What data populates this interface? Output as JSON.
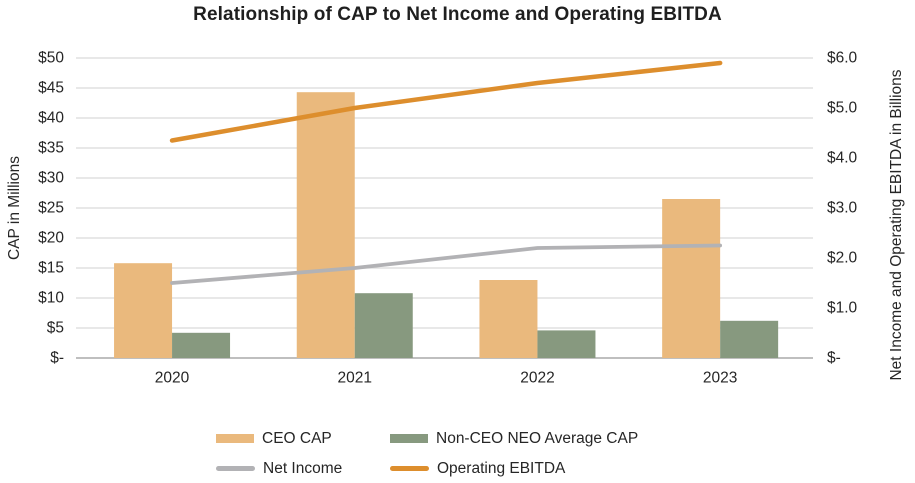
{
  "chart_data": {
    "type": "bar",
    "subtype": "combo-bar-line-dual-axis",
    "title": "Relationship of CAP to Net Income and Operating EBITDA",
    "categories": [
      "2020",
      "2021",
      "2022",
      "2023"
    ],
    "bar_series": [
      {
        "name": "CEO CAP",
        "axis": "left",
        "color": "#eab97d",
        "values": [
          15.8,
          44.3,
          13.0,
          26.5
        ]
      },
      {
        "name": "Non-CEO NEO Average CAP",
        "axis": "left",
        "color": "#87997f",
        "values": [
          4.2,
          10.8,
          4.6,
          6.2
        ]
      }
    ],
    "line_series": [
      {
        "name": "Net Income",
        "axis": "right",
        "color": "#b2b2b5",
        "stroke_width": 3.75,
        "values": [
          1.5,
          1.8,
          2.2,
          2.25
        ]
      },
      {
        "name": "Operating EBITDA",
        "axis": "right",
        "color": "#dd8e2d",
        "stroke_width": 4.5,
        "values": [
          4.35,
          5.0,
          5.5,
          5.9
        ]
      }
    ],
    "left_axis": {
      "label": "CAP in Millions",
      "min": 0,
      "max": 50,
      "step": 5,
      "ticks": [
        "$50",
        "$45",
        "$40",
        "$35",
        "$30",
        "$25",
        "$20",
        "$15",
        "$10",
        "$5",
        "$-"
      ]
    },
    "right_axis": {
      "label": "Net Income and Operating EBITDA in Billions",
      "min": 0,
      "max": 6,
      "step": 1,
      "ticks": [
        "$6.0",
        "$5.0",
        "$4.0",
        "$3.0",
        "$2.0",
        "$1.0",
        "$-"
      ]
    },
    "grid": true,
    "gridline_color": "#d9d9d9",
    "axisline_color": "#bfbfbf",
    "text_color": "#262626",
    "legend_position": "bottom"
  }
}
